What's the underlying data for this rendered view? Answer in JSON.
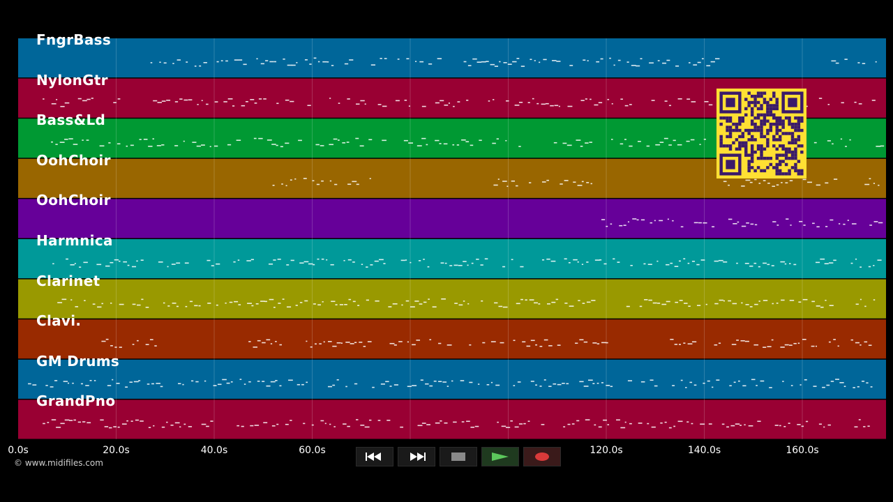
{
  "tracks": [
    {
      "name": "FngrBass",
      "color": "#006699"
    },
    {
      "name": "NylonGtr",
      "color": "#990033"
    },
    {
      "name": "Bass&Ld",
      "color": "#009933"
    },
    {
      "name": "OohChoir",
      "color": "#996600"
    },
    {
      "name": "OohChoir",
      "color": "#660099"
    },
    {
      "name": "Harmnica",
      "color": "#009999"
    },
    {
      "name": "Clarinet",
      "color": "#999900"
    },
    {
      "name": "Clavi.",
      "color": "#992a00"
    },
    {
      "name": "GM Drums",
      "color": "#006699"
    },
    {
      "name": "GrandPno",
      "color": "#990033"
    }
  ],
  "timeline": {
    "ticks": [
      "0.0s",
      "20.0s",
      "40.0s",
      "60.0s",
      "120.0s",
      "140.0s",
      "160.0s"
    ],
    "tick_seconds": [
      0,
      20,
      40,
      60,
      120,
      140,
      160
    ],
    "max_seconds": 177
  },
  "copyright": "© www.midifiles.com",
  "transport": {
    "rewind_icon": "rewind-icon",
    "fast_forward_icon": "fast-forward-icon",
    "stop_icon": "stop-icon",
    "play_icon": "play-icon",
    "record_icon": "record-icon"
  },
  "qr_color": "#ffe033"
}
